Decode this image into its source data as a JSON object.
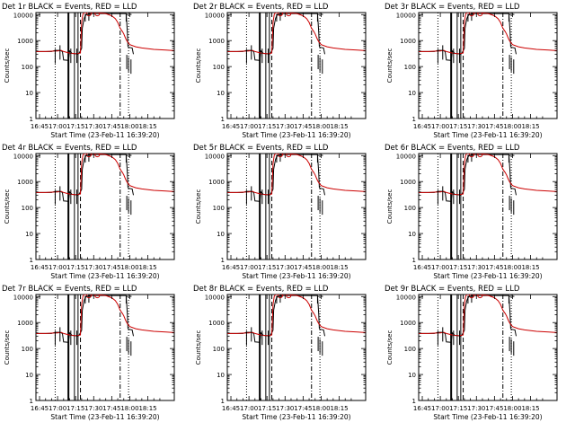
{
  "chart_data": [
    {
      "type": "line",
      "title": "Det 1r BLACK = Events, RED = LLD",
      "xlabel": "Start Time (23-Feb-11 16:39:20)",
      "ylabel": "Counts/sec",
      "yscale": "log",
      "ylim": [
        1,
        12000
      ],
      "xlim": [
        -18,
        97
      ]
    },
    {
      "type": "line",
      "title": "Det 2r BLACK = Events, RED = LLD",
      "xlabel": "Start Time (23-Feb-11 16:39:20)",
      "ylabel": "Counts/sec",
      "yscale": "log",
      "ylim": [
        1,
        12000
      ],
      "xlim": [
        -18,
        97
      ]
    },
    {
      "type": "line",
      "title": "Det 3r BLACK = Events, RED = LLD",
      "xlabel": "Start Time (23-Feb-11 16:39:20)",
      "ylabel": "Counts/sec",
      "yscale": "log",
      "ylim": [
        1,
        12000
      ],
      "xlim": [
        -18,
        97
      ]
    },
    {
      "type": "line",
      "title": "Det 4r BLACK = Events, RED = LLD",
      "xlabel": "Start Time (23-Feb-11 16:39:20)",
      "ylabel": "Counts/sec",
      "yscale": "log",
      "ylim": [
        1,
        12000
      ],
      "xlim": [
        -18,
        97
      ]
    },
    {
      "type": "line",
      "title": "Det 5r BLACK = Events, RED = LLD",
      "xlabel": "Start Time (23-Feb-11 16:39:20)",
      "ylabel": "Counts/sec",
      "yscale": "log",
      "ylim": [
        1,
        12000
      ],
      "xlim": [
        -18,
        97
      ]
    },
    {
      "type": "line",
      "title": "Det 6r BLACK = Events, RED = LLD",
      "xlabel": "Start Time (23-Feb-11 16:39:20)",
      "ylabel": "Counts/sec",
      "yscale": "log",
      "ylim": [
        1,
        12000
      ],
      "xlim": [
        -18,
        97
      ]
    },
    {
      "type": "line",
      "title": "Det 7r BLACK = Events, RED = LLD",
      "xlabel": "Start Time (23-Feb-11 16:39:20)",
      "ylabel": "Counts/sec",
      "yscale": "log",
      "ylim": [
        1,
        12000
      ],
      "xlim": [
        -18,
        97
      ]
    },
    {
      "type": "line",
      "title": "Det 8r BLACK = Events, RED = LLD",
      "xlabel": "Start Time (23-Feb-11 16:39:20)",
      "ylabel": "Counts/sec",
      "yscale": "log",
      "ylim": [
        1,
        12000
      ],
      "xlim": [
        -18,
        97
      ]
    },
    {
      "type": "line",
      "title": "Det 9r BLACK = Events, RED = LLD",
      "xlabel": "Start Time (23-Feb-11 16:39:20)",
      "ylabel": "Counts/sec",
      "yscale": "log",
      "ylim": [
        1,
        12000
      ],
      "xlim": [
        -18,
        97
      ]
    }
  ],
  "shared": {
    "x_ticks": [
      {
        "value": -15,
        "label": "16:45"
      },
      {
        "value": 0,
        "label": "17:00"
      },
      {
        "value": 15,
        "label": "17:15"
      },
      {
        "value": 30,
        "label": "17:30"
      },
      {
        "value": 45,
        "label": "17:45"
      },
      {
        "value": 60,
        "label": "18:00"
      },
      {
        "value": 75,
        "label": "18:15"
      }
    ],
    "y_ticks": [
      {
        "value": 1,
        "label": "1"
      },
      {
        "value": 10,
        "label": "10"
      },
      {
        "value": 100,
        "label": "100"
      },
      {
        "value": 1000,
        "label": "1000"
      },
      {
        "value": 10000,
        "label": "10000"
      }
    ],
    "series": [
      {
        "name": "Events",
        "color": "#000000",
        "x": [
          -18,
          -10,
          -5,
          -2,
          2,
          4,
          5,
          8,
          9,
          10,
          12,
          15,
          17,
          17.5,
          18,
          20,
          20.5,
          22,
          23,
          24,
          25,
          26,
          57,
          58,
          58.5,
          59,
          62,
          63
        ],
        "y": [
          380,
          380,
          380,
          420,
          420,
          380,
          180,
          175,
          170,
          400,
          320,
          310,
          300,
          320,
          330,
          500,
          3000,
          7000,
          9000,
          10000,
          10500,
          11000,
          11000,
          2000,
          600,
          550,
          520,
          300
        ]
      },
      {
        "name": "LLD",
        "color": "#cc0000",
        "x": [
          -18,
          -10,
          -5,
          0,
          3,
          5,
          10,
          15,
          19,
          20,
          21,
          22,
          23,
          24,
          26,
          30,
          33,
          36,
          40,
          45,
          48,
          50,
          52,
          54,
          55,
          56,
          57,
          58,
          60,
          65,
          70,
          80,
          90,
          97
        ],
        "y": [
          380,
          380,
          390,
          400,
          420,
          380,
          330,
          310,
          330,
          5000,
          10000,
          12000,
          12000,
          12000,
          12000,
          12000,
          12000,
          11500,
          11000,
          9000,
          7000,
          5000,
          3000,
          2200,
          1800,
          1400,
          1100,
          900,
          700,
          580,
          520,
          460,
          430,
          410
        ]
      }
    ],
    "markers": {
      "events_in_window": [
        {
          "x": -2,
          "y": 250
        },
        {
          "x": 2,
          "y": 350
        },
        {
          "x": 11,
          "y": 260
        },
        {
          "x": 16,
          "y": 260
        },
        {
          "x": 26,
          "y": 11000
        },
        {
          "x": 57.5,
          "y": 150
        },
        {
          "x": 59,
          "y": 120
        },
        {
          "x": 61,
          "y": 100
        }
      ],
      "lld_circles": [
        {
          "x": 26,
          "y": 11000
        },
        {
          "x": 33,
          "y": 11000
        }
      ]
    },
    "vertical_lines": [
      {
        "x": -2,
        "style": "dotted"
      },
      {
        "x": 9,
        "style": "solid-thick"
      },
      {
        "x": 14,
        "style": "solid"
      },
      {
        "x": 17,
        "style": "solid"
      },
      {
        "x": 19,
        "style": "dashed"
      },
      {
        "x": 52,
        "style": "dashdot"
      },
      {
        "x": 59,
        "style": "dotted"
      }
    ],
    "colors": {
      "axis": "#000000",
      "events": "#000000",
      "lld": "#cc0000"
    }
  }
}
